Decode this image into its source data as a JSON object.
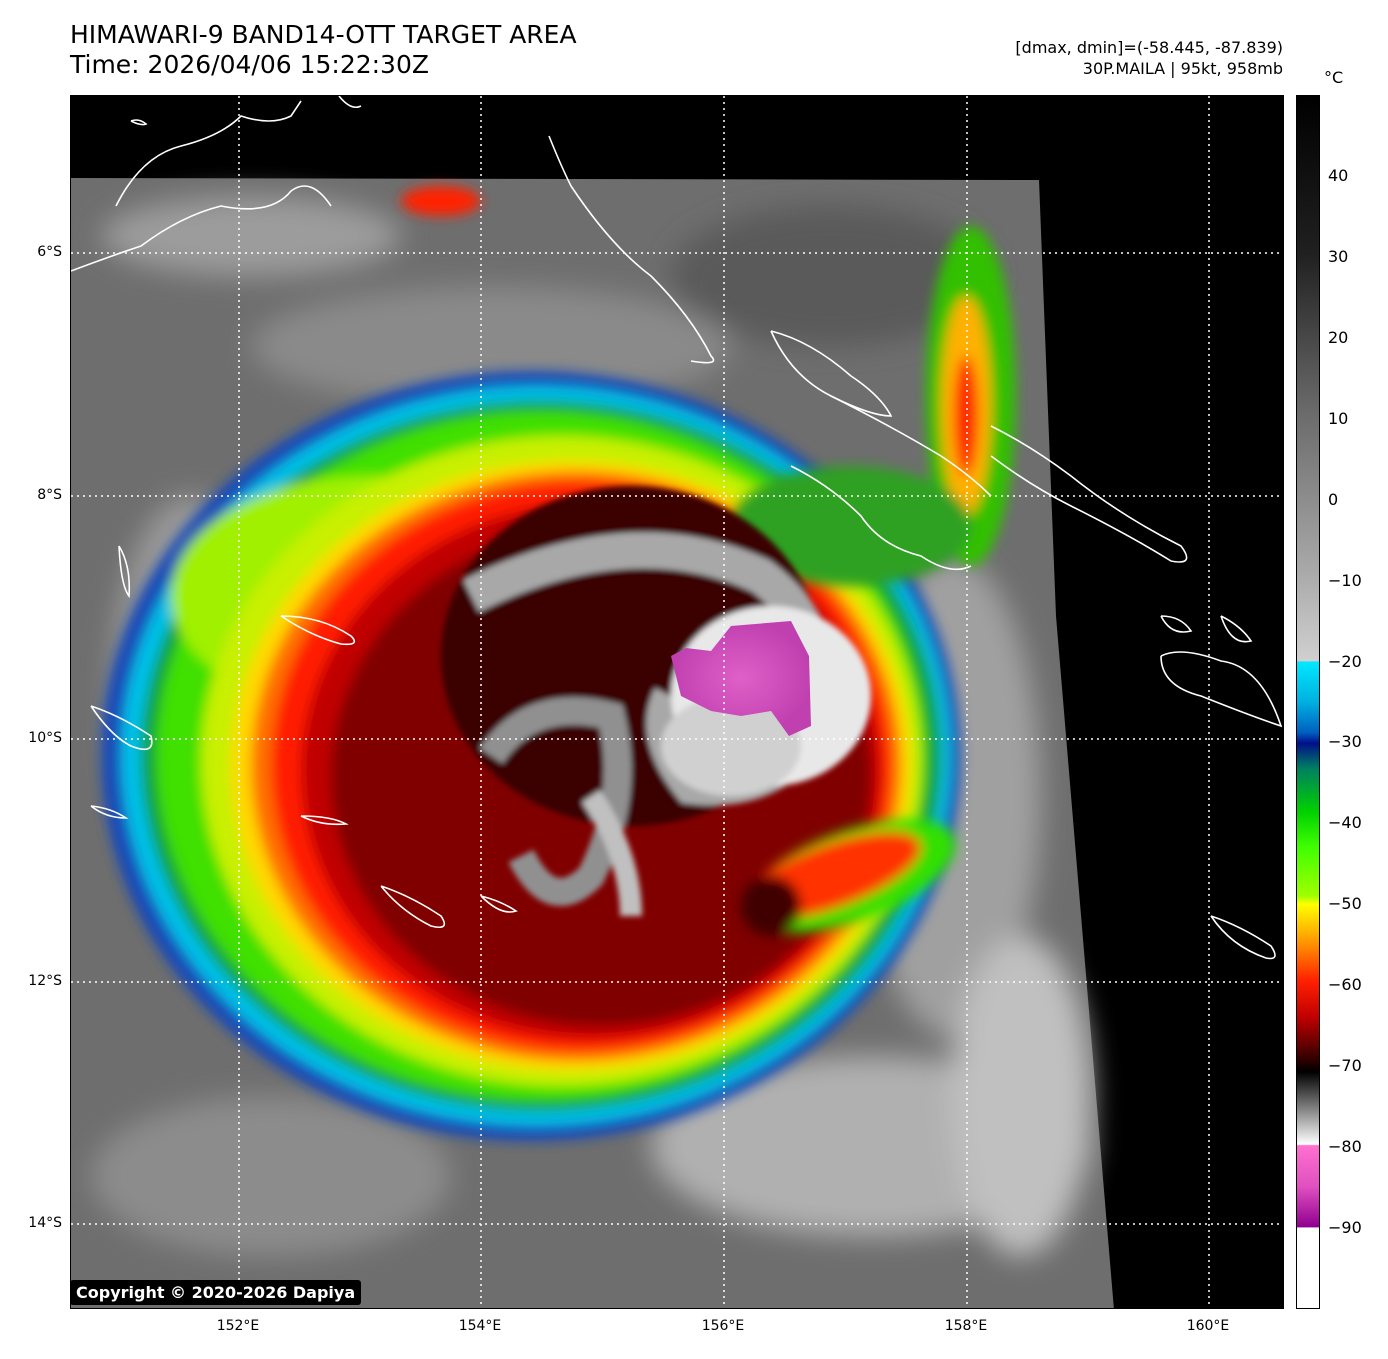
{
  "title": {
    "line1": "HIMAWARI-9 BAND14-OTT TARGET AREA",
    "line2": "Time: 2026/04/06 15:22:30Z"
  },
  "meta": {
    "line1": "[dmax, dmin]=(-58.445, -87.839)",
    "line2": "30P.MAILA | 95kt, 958mb"
  },
  "copyright": "Copyright © 2020-2026 Dapiya",
  "colorbar": {
    "unit": "°C",
    "ticks": [
      "40",
      "30",
      "20",
      "10",
      "0",
      "−10",
      "−20",
      "−30",
      "−40",
      "−50",
      "−60",
      "−70",
      "−80",
      "−90"
    ],
    "range": [
      -100,
      50
    ]
  },
  "axes": {
    "lat_ticks": [
      "6°S",
      "8°S",
      "10°S",
      "12°S",
      "14°S"
    ],
    "lon_ticks": [
      "152°E",
      "154°E",
      "156°E",
      "158°E",
      "160°E"
    ],
    "lon_range": [
      150.6,
      160.6
    ],
    "lat_range": [
      -4.7,
      -14.7
    ]
  },
  "storm": {
    "name": "30P.MAILA",
    "center_lon": 155.9,
    "center_lat": -9.5
  },
  "colors": {
    "background": "#ffffff",
    "grid": "#ffffff",
    "coast": "#ffffff"
  }
}
